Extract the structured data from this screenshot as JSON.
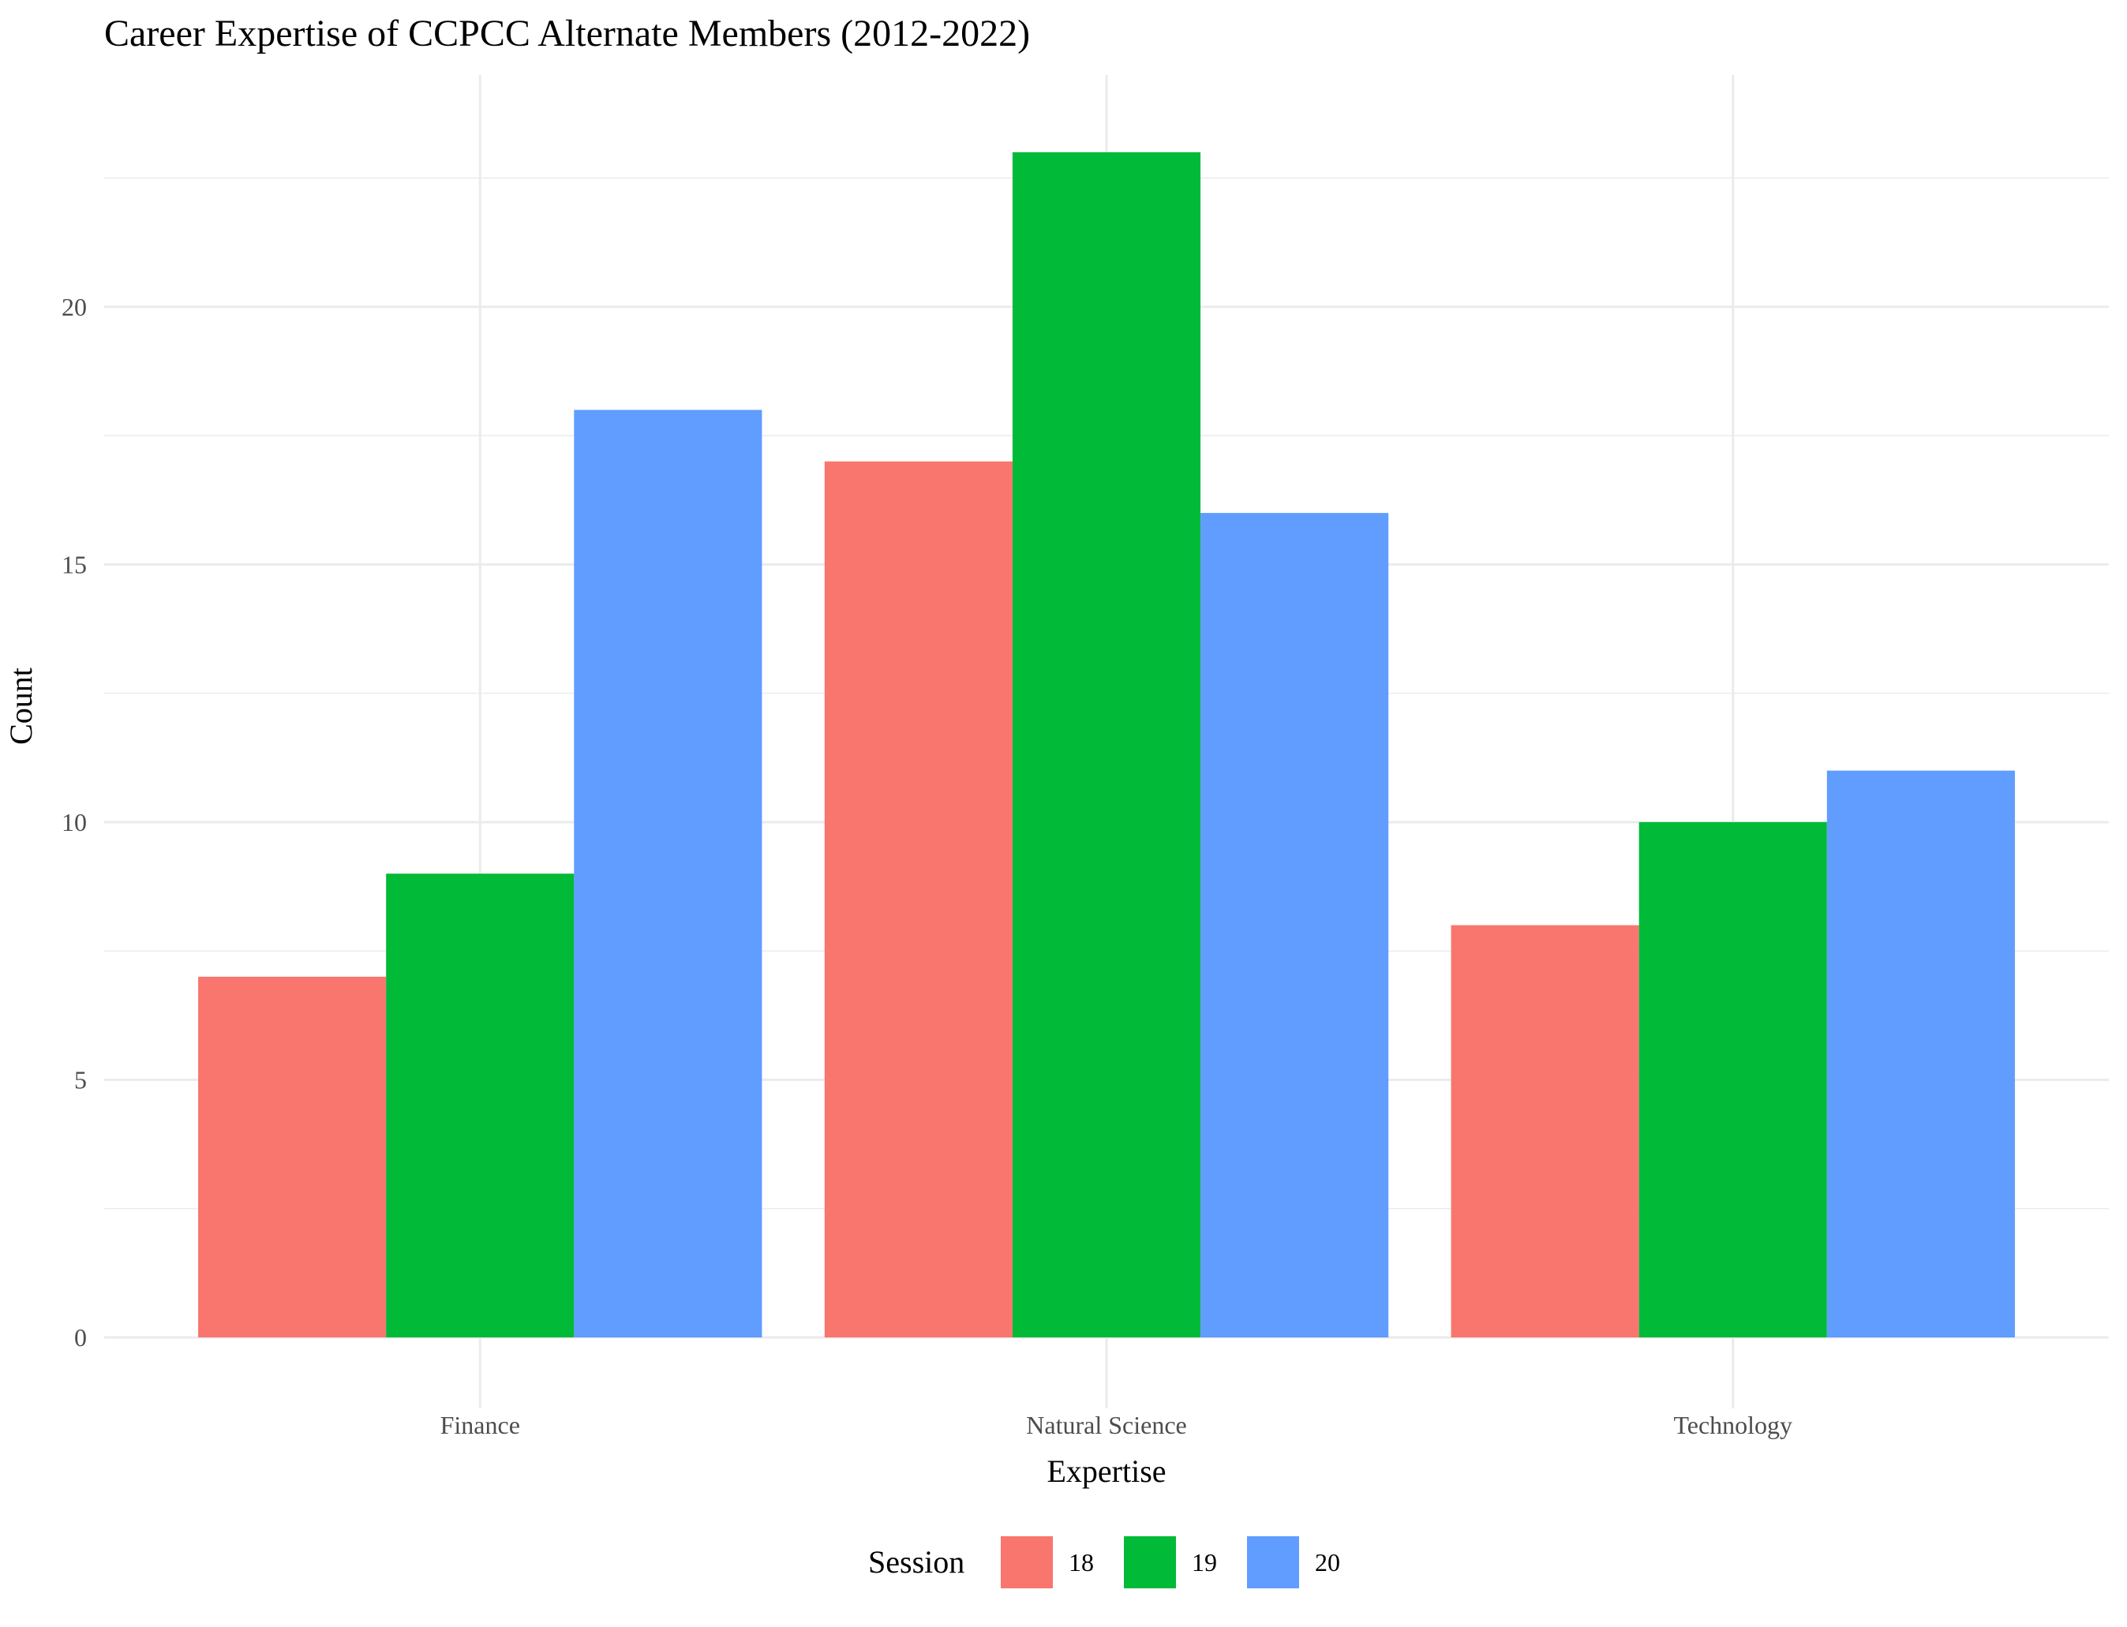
{
  "chart_data": {
    "type": "bar",
    "title": "Career Expertise of CCPCC Alternate Members (2012-2022)",
    "xlabel": "Expertise",
    "ylabel": "Count",
    "categories": [
      "Finance",
      "Natural Science",
      "Technology"
    ],
    "series": [
      {
        "name": "18",
        "values": [
          7,
          17,
          8
        ],
        "color": "#F8766D"
      },
      {
        "name": "19",
        "values": [
          9,
          23,
          10
        ],
        "color": "#00BA38"
      },
      {
        "name": "20",
        "values": [
          18,
          16,
          11
        ],
        "color": "#619CFF"
      }
    ],
    "ylim": [
      0,
      24.5
    ],
    "yticks": [
      0,
      5,
      10,
      15,
      20
    ],
    "ytick_labels": [
      "0",
      "5",
      "10",
      "15",
      "20"
    ],
    "grid": true,
    "legend": {
      "title": "Session",
      "position": "bottom"
    }
  }
}
